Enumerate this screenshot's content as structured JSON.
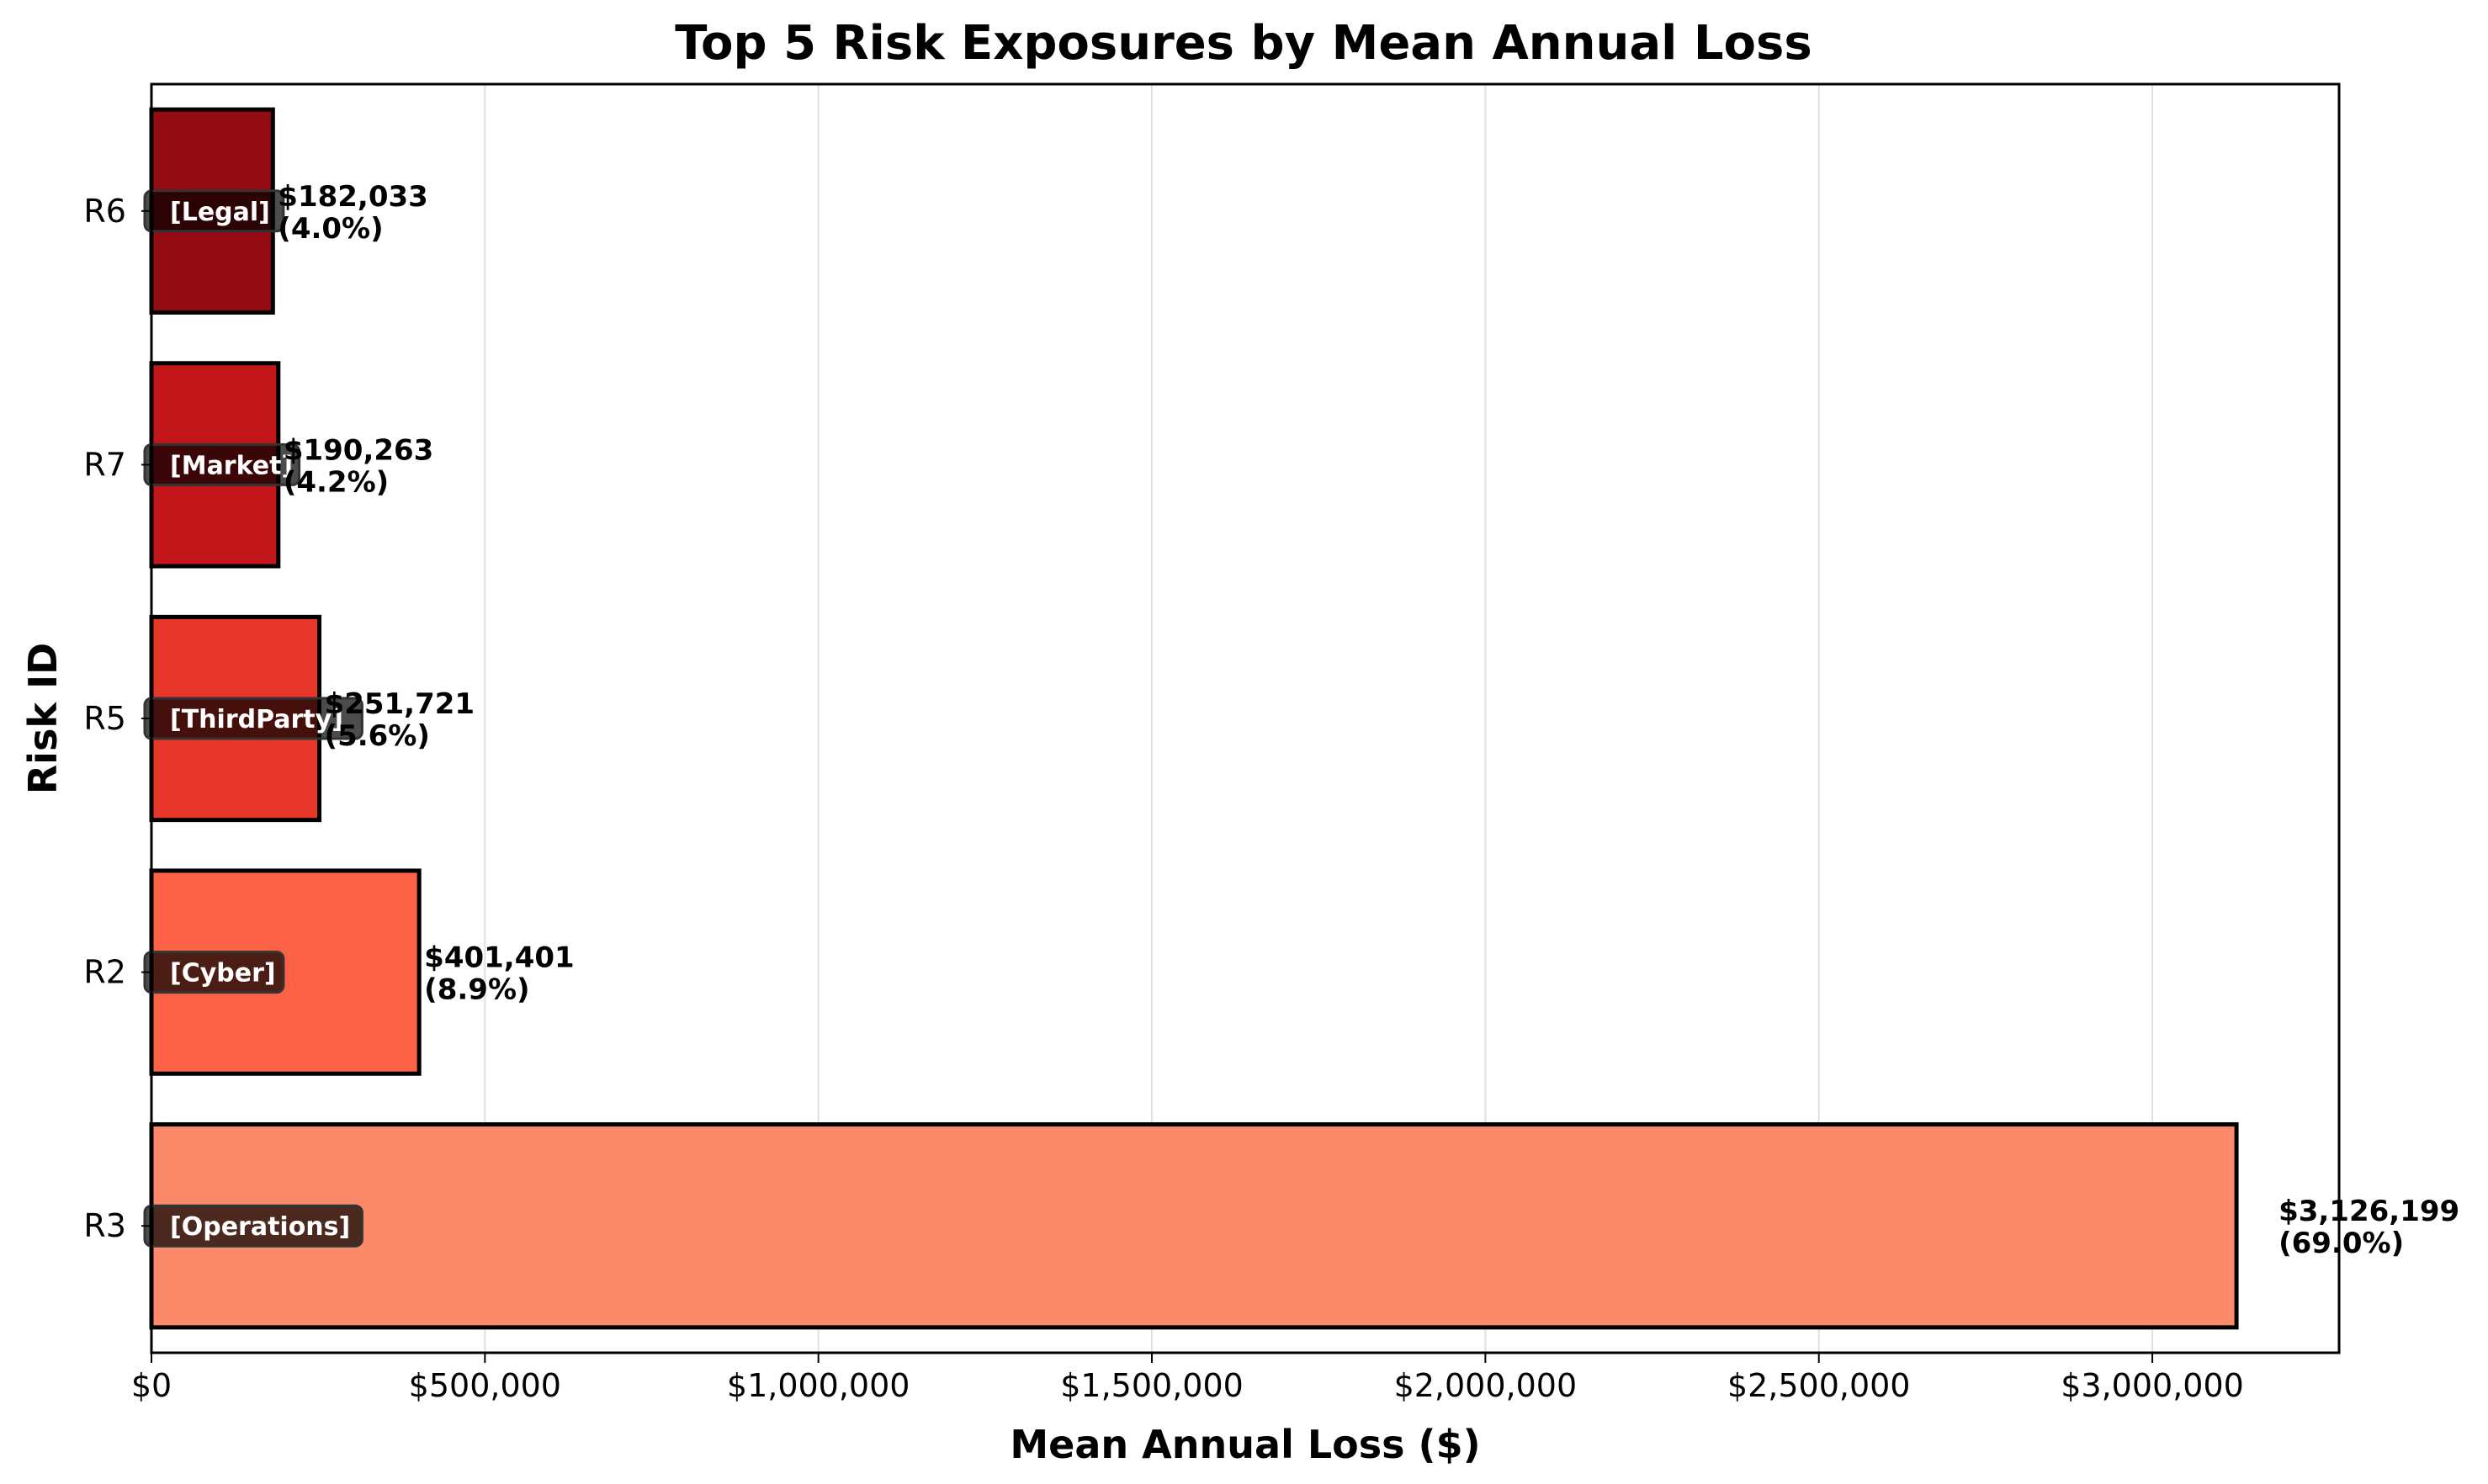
{
  "chart_data": {
    "type": "bar",
    "orientation": "horizontal",
    "title": "Top 5 Risk Exposures by Mean Annual Loss",
    "xlabel": "Mean Annual Loss ($)",
    "ylabel": "Risk ID",
    "xlim": [
      0,
      3280000
    ],
    "xticks": [
      0,
      500000,
      1000000,
      1500000,
      2000000,
      2500000,
      3000000
    ],
    "xtick_labels": [
      "$0",
      "$500,000",
      "$1,000,000",
      "$1,500,000",
      "$2,000,000",
      "$2,500,000",
      "$3,000,000"
    ],
    "grid": "x",
    "bars": [
      {
        "id": "R3",
        "category": "[Operations]",
        "value": 3126199,
        "value_label": "$3,126,199",
        "pct_label": "(69.0%)",
        "color": "#fc8a6a"
      },
      {
        "id": "R2",
        "category": "[Cyber]",
        "value": 401401,
        "value_label": "$401,401",
        "pct_label": "(8.9%)",
        "color": "#fb6246"
      },
      {
        "id": "R5",
        "category": "[ThirdParty]",
        "value": 251721,
        "value_label": "$251,721",
        "pct_label": "(5.6%)",
        "color": "#e8362a"
      },
      {
        "id": "R7",
        "category": "[Market]",
        "value": 190263,
        "value_label": "$190,263",
        "pct_label": "(4.2%)",
        "color": "#c2161b"
      },
      {
        "id": "R6",
        "category": "[Legal]",
        "value": 182033,
        "value_label": "$182,033",
        "pct_label": "(4.0%)",
        "color": "#940b13"
      }
    ]
  }
}
